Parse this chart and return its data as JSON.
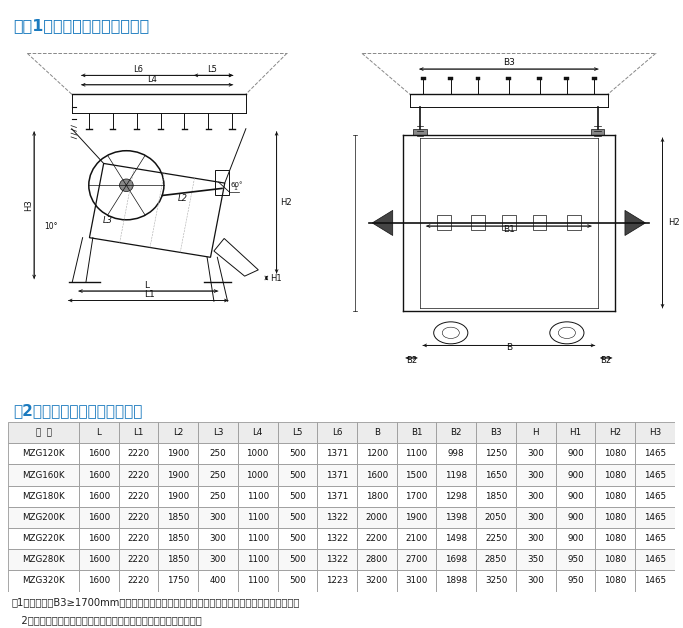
{
  "title1": "四（1）、宽槽体给料机安装图",
  "title2": "（2）、宽槽体给料机主要尺寸",
  "title_color": "#1a7abf",
  "note1": "注1：滔槽闸门B3≥1700mm的，为双手轮闸门。其它为单手轮闸门，如用户无要求为左式安装。",
  "note2": "   2：我公司可根据用户的不同需求，定制各种要求和规格的给料机。",
  "table_headers": [
    "型  号",
    "L",
    "L1",
    "L2",
    "L3",
    "L4",
    "L5",
    "L6",
    "B",
    "B1",
    "B2",
    "B3",
    "H",
    "H1",
    "H2",
    "H3"
  ],
  "table_data": [
    [
      "MZG120K",
      "1600",
      "2220",
      "1900",
      "250",
      "1000",
      "500",
      "1371",
      "1200",
      "1100",
      "998",
      "1250",
      "300",
      "900",
      "1080",
      "1465"
    ],
    [
      "MZG160K",
      "1600",
      "2220",
      "1900",
      "250",
      "1000",
      "500",
      "1371",
      "1600",
      "1500",
      "1198",
      "1650",
      "300",
      "900",
      "1080",
      "1465"
    ],
    [
      "MZG180K",
      "1600",
      "2220",
      "1900",
      "250",
      "1100",
      "500",
      "1371",
      "1800",
      "1700",
      "1298",
      "1850",
      "300",
      "900",
      "1080",
      "1465"
    ],
    [
      "MZG200K",
      "1600",
      "2220",
      "1850",
      "300",
      "1100",
      "500",
      "1322",
      "2000",
      "1900",
      "1398",
      "2050",
      "300",
      "900",
      "1080",
      "1465"
    ],
    [
      "MZG220K",
      "1600",
      "2220",
      "1850",
      "300",
      "1100",
      "500",
      "1322",
      "2200",
      "2100",
      "1498",
      "2250",
      "300",
      "900",
      "1080",
      "1465"
    ],
    [
      "MZG280K",
      "1600",
      "2220",
      "1850",
      "300",
      "1100",
      "500",
      "1322",
      "2800",
      "2700",
      "1698",
      "2850",
      "350",
      "950",
      "1080",
      "1465"
    ],
    [
      "MZG320K",
      "1600",
      "2220",
      "1750",
      "400",
      "1100",
      "500",
      "1223",
      "3200",
      "3100",
      "1898",
      "3250",
      "300",
      "950",
      "1080",
      "1465"
    ]
  ],
  "bg_color": "#ffffff",
  "table_header_bg": "#ececec",
  "table_row_bg1": "#ffffff",
  "table_row_bg2": "#f8f8f8",
  "table_border_color": "#999999",
  "lc": "#111111",
  "lw": 0.7
}
